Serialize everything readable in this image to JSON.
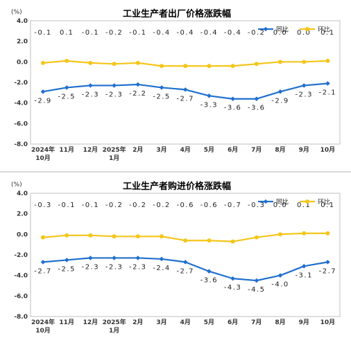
{
  "colors": {
    "yoy": "#1F6FD0",
    "mom": "#F5C518",
    "axis": "#7a7a7a"
  },
  "chart_data": [
    {
      "type": "line",
      "title": "工业生产者出厂价格涨跌幅",
      "unit": "(%)",
      "categories": [
        [
          "2024年",
          "10月"
        ],
        [
          "11月"
        ],
        [
          "12月"
        ],
        [
          "2025年",
          "1月"
        ],
        [
          "2月"
        ],
        [
          "3月"
        ],
        [
          "4月"
        ],
        [
          "5月"
        ],
        [
          "6月"
        ],
        [
          "7月"
        ],
        [
          "8月"
        ],
        [
          "9月"
        ],
        [
          "10月"
        ]
      ],
      "yticks": [
        "4.0",
        "2.0",
        "0.0",
        "-2.0",
        "-4.0",
        "-6.0",
        "-8.0"
      ],
      "ylim": [
        -8,
        4
      ],
      "legend_position": "top-right",
      "series": [
        {
          "name": "同比",
          "key": "yoy",
          "values": [
            -2.9,
            -2.5,
            -2.3,
            -2.3,
            -2.2,
            -2.5,
            -2.7,
            -3.3,
            -3.6,
            -3.6,
            -2.9,
            -2.3,
            -2.1
          ],
          "labels": [
            "-2.9",
            "-2.5",
            "-2.3",
            "-2.3",
            "-2.2",
            "-2.5",
            "-2.7",
            "-3.3",
            "-3.6",
            "-3.6",
            "-2.9",
            "-2.3",
            "-2.1"
          ]
        },
        {
          "name": "环比",
          "key": "mom",
          "values": [
            -0.1,
            0.1,
            -0.1,
            -0.2,
            -0.1,
            -0.4,
            -0.4,
            -0.4,
            -0.4,
            -0.2,
            0.0,
            0.0,
            0.1
          ],
          "labels": [
            "-0.1",
            "0.1",
            "-0.1",
            "-0.2",
            "-0.1",
            "-0.4",
            "-0.4",
            "-0.4",
            "-0.4",
            "-0.2",
            "0.0",
            "0.0",
            "0.1"
          ]
        }
      ]
    },
    {
      "type": "line",
      "title": "工业生产者购进价格涨跌幅",
      "unit": "(%)",
      "categories": [
        [
          "2024年",
          "10月"
        ],
        [
          "11月"
        ],
        [
          "12月"
        ],
        [
          "2025年",
          "1月"
        ],
        [
          "2月"
        ],
        [
          "3月"
        ],
        [
          "4月"
        ],
        [
          "5月"
        ],
        [
          "6月"
        ],
        [
          "7月"
        ],
        [
          "8月"
        ],
        [
          "9月"
        ],
        [
          "10月"
        ]
      ],
      "yticks": [
        "4.0",
        "2.0",
        "0.0",
        "-2.0",
        "-4.0",
        "-6.0",
        "-8.0"
      ],
      "ylim": [
        -8,
        4
      ],
      "legend_position": "top-right",
      "series": [
        {
          "name": "同比",
          "key": "yoy",
          "values": [
            -2.7,
            -2.5,
            -2.3,
            -2.3,
            -2.3,
            -2.4,
            -2.7,
            -3.6,
            -4.3,
            -4.5,
            -4.0,
            -3.1,
            -2.7
          ],
          "labels": [
            "-2.7",
            "-2.5",
            "-2.3",
            "-2.3",
            "-2.3",
            "-2.4",
            "-2.7",
            "-3.6",
            "-4.3",
            "-4.5",
            "-4.0",
            "-3.1",
            "-2.7"
          ]
        },
        {
          "name": "环比",
          "key": "mom",
          "values": [
            -0.3,
            -0.1,
            -0.1,
            -0.2,
            -0.2,
            -0.2,
            -0.6,
            -0.6,
            -0.7,
            -0.3,
            0.0,
            0.1,
            0.1
          ],
          "labels": [
            "-0.3",
            "-0.1",
            "-0.1",
            "-0.2",
            "-0.2",
            "-0.2",
            "-0.6",
            "-0.6",
            "-0.7",
            "-0.3",
            "0.0",
            "0.1",
            "0.1"
          ]
        }
      ]
    }
  ]
}
